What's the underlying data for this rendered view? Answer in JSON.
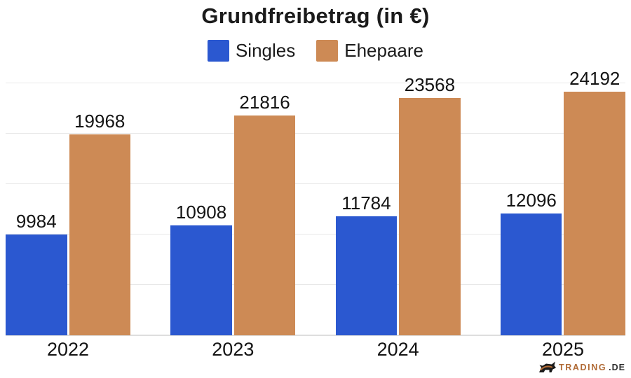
{
  "title": "Grundfreibetrag (in €)",
  "legend": [
    {
      "label": "Singles",
      "color": "#2b58d0"
    },
    {
      "label": "Ehepaare",
      "color": "#cd8a55"
    }
  ],
  "chart_data": {
    "type": "bar",
    "title": "Grundfreibetrag (in €)",
    "categories": [
      "2022",
      "2023",
      "2024",
      "2025"
    ],
    "series": [
      {
        "name": "Singles",
        "color": "#2b58d0",
        "values": [
          9984,
          10908,
          11784,
          12096
        ]
      },
      {
        "name": "Ehepaare",
        "color": "#cd8a55",
        "values": [
          19968,
          21816,
          23568,
          24192
        ]
      }
    ],
    "xlabel": "",
    "ylabel": "",
    "ylim": [
      0,
      25300
    ],
    "gridlines": [
      5000,
      10000,
      15000,
      20000,
      25000
    ],
    "grid": "horizontal-only",
    "legend_position": "top",
    "value_labels": "above-bars"
  },
  "watermark": {
    "brand": "TRADING",
    "tld": ".DE",
    "icon": "bull-icon",
    "brand_color": "#b06a35"
  },
  "colors": {
    "background": "#ffffff",
    "text": "#141414",
    "gridline": "#e8e8e8",
    "axis_line": "#dedede",
    "singles_blue": "#2b58d0",
    "ehepaare_tan": "#cd8a55"
  }
}
